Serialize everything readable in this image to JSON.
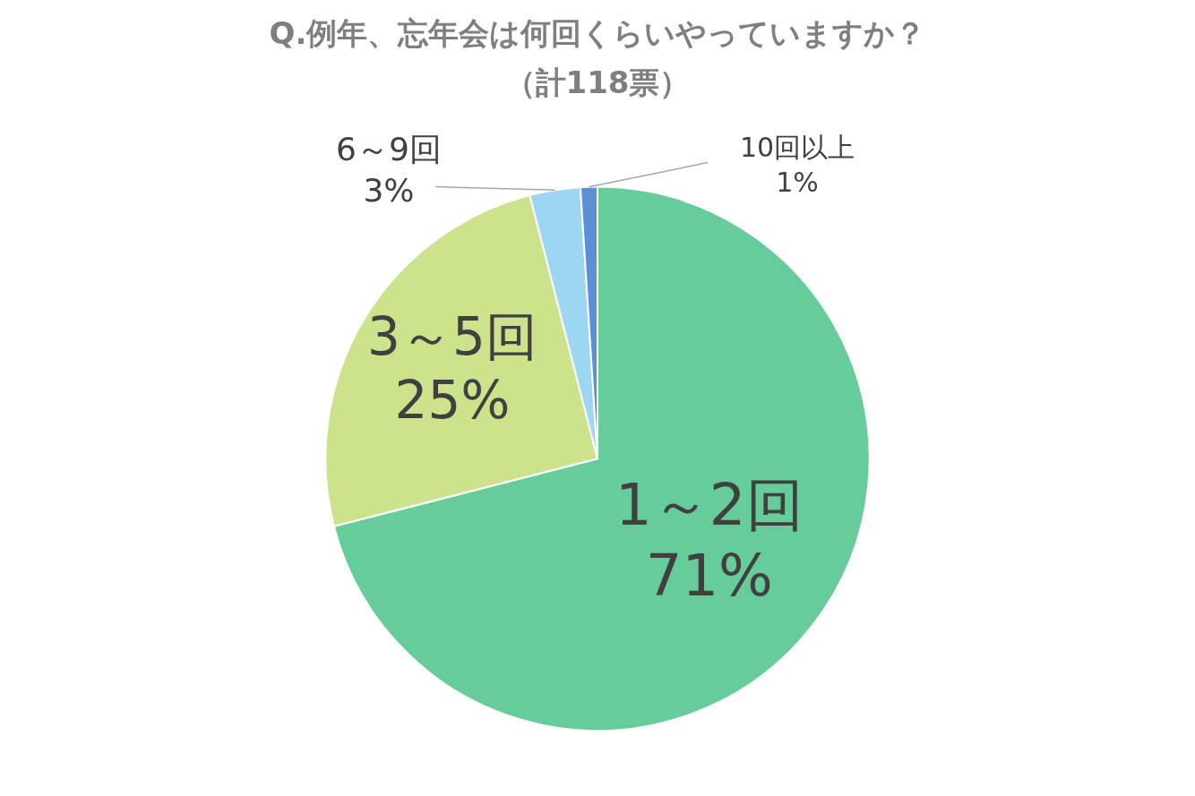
{
  "chart_data": {
    "type": "pie",
    "title": "Q.例年、忘年会は何回くらいやっていますか？",
    "subtitle": "（計118票）",
    "categories": [
      "1～2回",
      "3～5回",
      "6～9回",
      "10回以上"
    ],
    "values": [
      71,
      25,
      3,
      1
    ],
    "colors": [
      "#66cc99",
      "#cce38c",
      "#9dd6f2",
      "#5b8fd6"
    ],
    "value_labels": [
      "71%",
      "25%",
      "3%",
      "1%"
    ],
    "legend": false
  }
}
